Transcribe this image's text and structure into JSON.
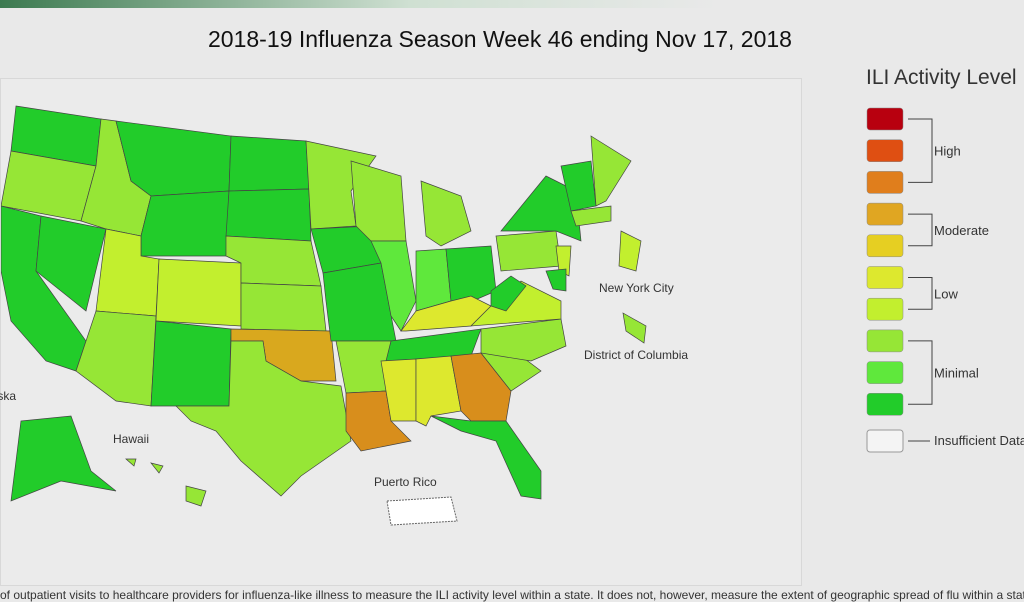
{
  "header": {
    "title": "2018-19 Influenza Season Week 46 ending Nov 17, 2018"
  },
  "map": {
    "labels": {
      "alaska": "Alaska",
      "hawaii": "Hawaii",
      "puerto_rico": "Puerto Rico",
      "new_york_city": "New York City",
      "district_of_columbia": "District of Columbia"
    }
  },
  "legend": {
    "title": "ILI Activity Level",
    "colors": [
      "#b8000f",
      "#df4f12",
      "#e07e1c",
      "#e0a622",
      "#e6cf22",
      "#dde82e",
      "#c2ef2e",
      "#96e636",
      "#5fe83c",
      "#22cc2a"
    ],
    "groups": [
      "High",
      "Moderate",
      "Low",
      "Minimal"
    ],
    "insufficient": "Insufficient Data"
  },
  "footnote": "of outpatient visits to healthcare providers for influenza-like illness to measure the ILI activity level within a state. It does not, however, measure the extent of geographic spread of flu within a state"
}
